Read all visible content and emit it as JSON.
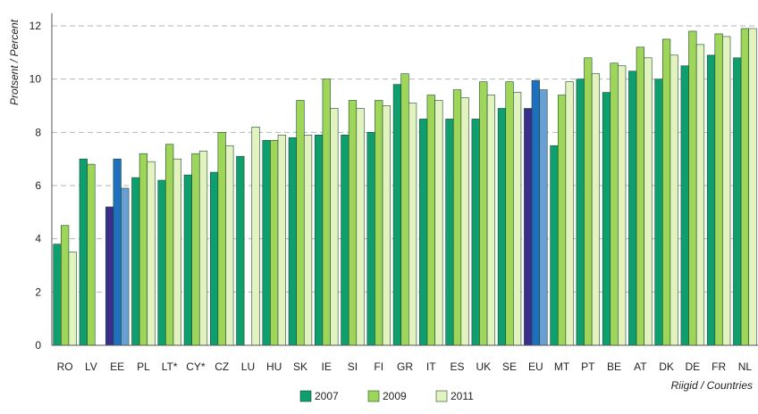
{
  "chart_data": {
    "type": "bar",
    "title": "",
    "xlabel": "Riigid / Countries",
    "ylabel": "Protsent / Percent",
    "ylim": [
      0,
      12
    ],
    "yticks": [
      0,
      2,
      4,
      6,
      8,
      10,
      12
    ],
    "grid": "horizontal dashed",
    "legend_position": "bottom",
    "categories": [
      "RO",
      "LV",
      "EE",
      "PL",
      "LT*",
      "CY*",
      "CZ",
      "LU",
      "HU",
      "SK",
      "IE",
      "SI",
      "FI",
      "GR",
      "IT",
      "ES",
      "UK",
      "SE",
      "EU",
      "MT",
      "PT",
      "BE",
      "AT",
      "DK",
      "DE",
      "FR",
      "NL"
    ],
    "series": [
      {
        "name": "2007",
        "color": "#0f9e6e",
        "values": [
          3.8,
          7.0,
          5.2,
          6.3,
          6.2,
          6.4,
          6.5,
          7.1,
          7.7,
          7.8,
          7.9,
          7.9,
          8.0,
          9.8,
          8.5,
          8.5,
          8.5,
          8.9,
          8.9,
          7.5,
          10.0,
          9.5,
          10.3,
          10.0,
          10.5,
          10.9,
          10.8
        ]
      },
      {
        "name": "2009",
        "color": "#9fd65a",
        "values": [
          4.5,
          6.8,
          7.0,
          7.2,
          7.55,
          7.2,
          8.0,
          null,
          7.7,
          9.2,
          10.0,
          9.2,
          9.2,
          10.2,
          9.4,
          9.6,
          9.9,
          9.9,
          9.95,
          9.4,
          10.8,
          10.6,
          11.2,
          11.5,
          11.8,
          11.7,
          11.9
        ]
      },
      {
        "name": "2011",
        "color": "#e3f3bf",
        "values": [
          3.5,
          null,
          5.9,
          6.9,
          7.0,
          7.3,
          7.5,
          8.2,
          7.9,
          7.9,
          8.9,
          8.9,
          9.0,
          9.1,
          9.2,
          9.3,
          9.4,
          9.5,
          9.6,
          9.9,
          10.2,
          10.5,
          10.8,
          10.9,
          11.3,
          11.6,
          11.9
        ]
      }
    ],
    "highlight": [
      {
        "category": "EE",
        "colors": [
          "#3a2f8c",
          "#1e6fbf",
          "#6a9fd2"
        ]
      },
      {
        "category": "EU",
        "colors": [
          "#3a2f8c",
          "#1e6fbf",
          "#6a9fd2"
        ]
      }
    ],
    "bar_outline_color": "#1a4a30"
  }
}
